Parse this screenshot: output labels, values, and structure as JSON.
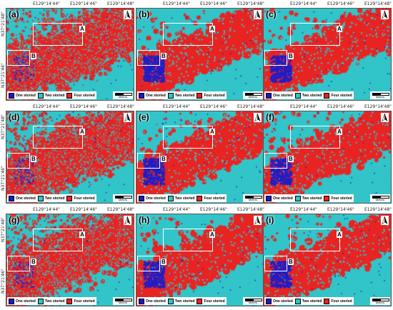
{
  "coords": {
    "top": [
      "E129°14'44\"",
      "E129°14'46\"",
      "E129°14'48\""
    ],
    "left": [
      "N37°21'48\"",
      "N37°21'46\""
    ]
  },
  "legend": {
    "items": [
      {
        "label": "One storied",
        "color": "#1919c8"
      },
      {
        "label": "Two storied",
        "color": "#2ec4c8"
      },
      {
        "label": "Four storied",
        "color": "#e8201e"
      }
    ],
    "scale_label": "Meters"
  },
  "box_labels": {
    "a": "A",
    "b": "B"
  },
  "colors": {
    "one": "#1919c8",
    "two": "#2ec4c8",
    "four": "#e8201e"
  },
  "panels": [
    {
      "label": "(a)",
      "style": "noisy"
    },
    {
      "label": "(b)",
      "style": "smooth"
    },
    {
      "label": "(c)",
      "style": "smooth"
    },
    {
      "label": "(d)",
      "style": "noisy"
    },
    {
      "label": "(e)",
      "style": "smooth"
    },
    {
      "label": "(f)",
      "style": "smooth"
    },
    {
      "label": "(g)",
      "style": "noisy"
    },
    {
      "label": "(h)",
      "style": "smooth"
    },
    {
      "label": "(i)",
      "style": "smooth"
    }
  ]
}
